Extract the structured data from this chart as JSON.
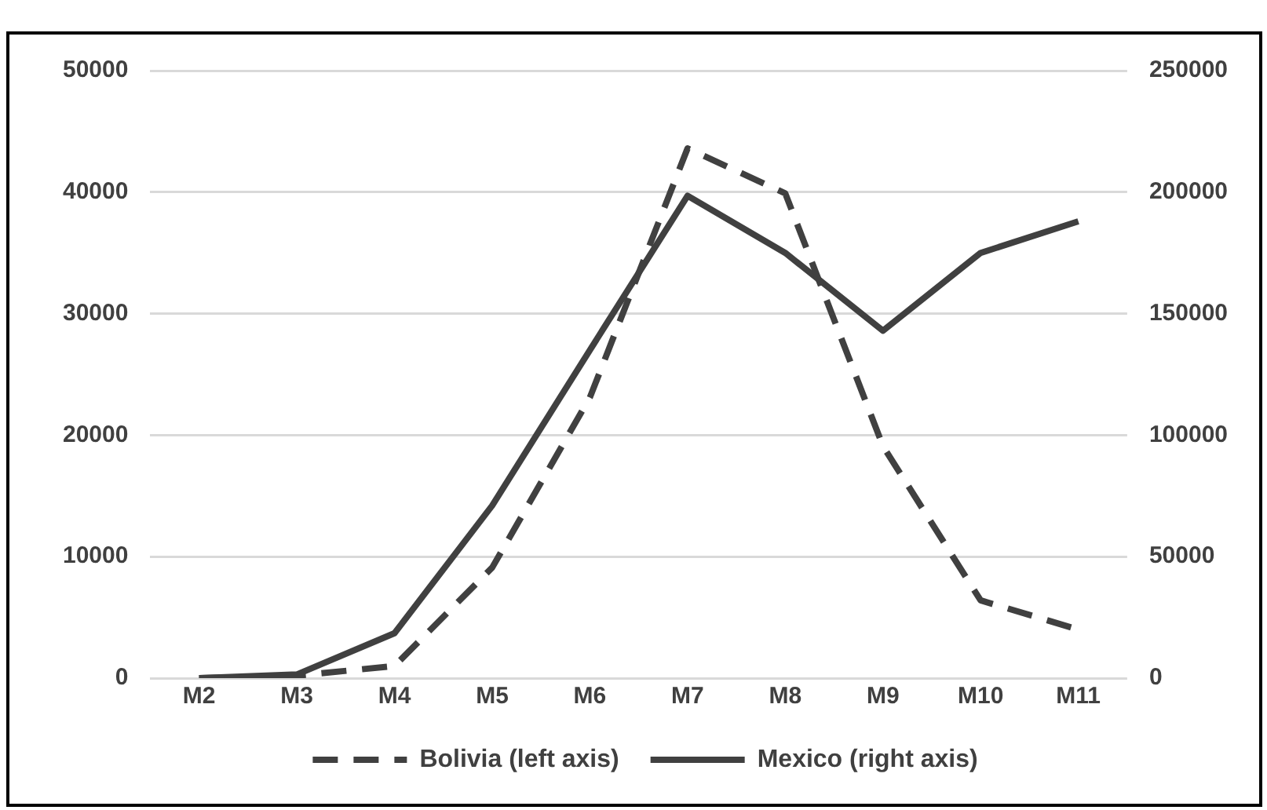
{
  "chart_data": {
    "type": "line",
    "categories": [
      "M2",
      "M3",
      "M4",
      "M5",
      "M6",
      "M7",
      "M8",
      "M9",
      "M10",
      "M11"
    ],
    "series": [
      {
        "name": "Bolivia (left axis)",
        "color": "#404040",
        "line_style": "dashed",
        "values": [
          0,
          200,
          1000,
          9100,
          23100,
          43600,
          39900,
          19100,
          6400,
          4000
        ]
      },
      {
        "name": "Mexico (right axis)",
        "color": "#404040",
        "line_style": "solid",
        "axis": "y2",
        "values": [
          0,
          1500,
          18500,
          71000,
          135000,
          198500,
          175000,
          143000,
          175000,
          188000
        ]
      }
    ],
    "ylim": [
      0,
      50000
    ],
    "yticks": [
      0,
      10000,
      20000,
      30000,
      40000,
      50000
    ],
    "y2lim": [
      0,
      250000
    ],
    "y2ticks": [
      0,
      50000,
      100000,
      150000,
      200000,
      250000
    ],
    "grid": "y",
    "legend": "bottom",
    "marker": "none"
  }
}
